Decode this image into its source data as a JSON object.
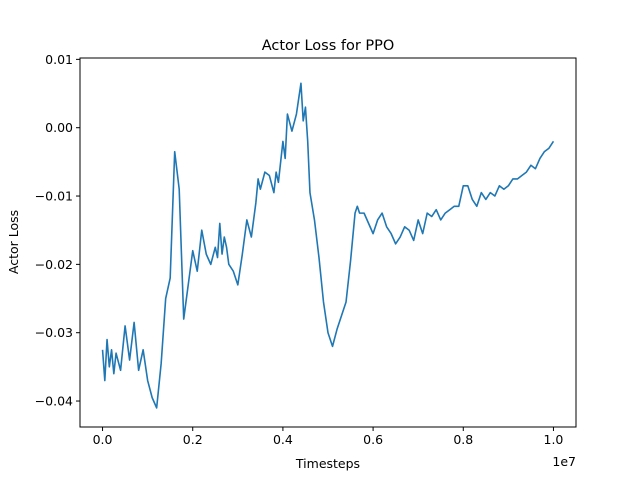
{
  "chart_data": {
    "type": "line",
    "title": "Actor Loss for PPO",
    "xlabel": "Timesteps",
    "ylabel": "Actor Loss",
    "x_offset_label": "1e7",
    "x_scale": 10000000,
    "xlim": [
      -0.05,
      1.05
    ],
    "ylim": [
      -0.0438,
      0.0102
    ],
    "xticks": [
      0.0,
      0.2,
      0.4,
      0.6,
      0.8,
      1.0
    ],
    "xtick_labels": [
      "0.0",
      "0.2",
      "0.4",
      "0.6",
      "0.8",
      "1.0"
    ],
    "yticks": [
      -0.04,
      -0.03,
      -0.02,
      -0.01,
      0.0,
      0.01
    ],
    "ytick_labels": [
      "−0.04",
      "−0.03",
      "−0.02",
      "−0.01",
      "0.00",
      "0.01"
    ],
    "grid": false,
    "series": [
      {
        "color": "#1f77b4",
        "x": [
          0.0,
          0.005,
          0.01,
          0.015,
          0.02,
          0.025,
          0.03,
          0.04,
          0.05,
          0.06,
          0.07,
          0.08,
          0.09,
          0.1,
          0.11,
          0.12,
          0.13,
          0.14,
          0.15,
          0.16,
          0.17,
          0.18,
          0.19,
          0.2,
          0.21,
          0.22,
          0.23,
          0.24,
          0.25,
          0.255,
          0.26,
          0.265,
          0.27,
          0.275,
          0.28,
          0.29,
          0.3,
          0.31,
          0.32,
          0.33,
          0.34,
          0.345,
          0.35,
          0.36,
          0.37,
          0.38,
          0.385,
          0.39,
          0.4,
          0.405,
          0.41,
          0.42,
          0.43,
          0.44,
          0.445,
          0.45,
          0.455,
          0.46,
          0.47,
          0.48,
          0.49,
          0.5,
          0.51,
          0.52,
          0.53,
          0.54,
          0.55,
          0.56,
          0.565,
          0.57,
          0.58,
          0.59,
          0.6,
          0.61,
          0.62,
          0.63,
          0.64,
          0.65,
          0.66,
          0.67,
          0.68,
          0.69,
          0.7,
          0.71,
          0.72,
          0.73,
          0.74,
          0.75,
          0.76,
          0.77,
          0.78,
          0.79,
          0.8,
          0.81,
          0.82,
          0.83,
          0.84,
          0.85,
          0.86,
          0.87,
          0.88,
          0.89,
          0.9,
          0.91,
          0.92,
          0.93,
          0.94,
          0.95,
          0.96,
          0.97,
          0.98,
          0.99,
          1.0
        ],
        "y": [
          -0.0325,
          -0.037,
          -0.031,
          -0.035,
          -0.0325,
          -0.036,
          -0.033,
          -0.0355,
          -0.029,
          -0.034,
          -0.0285,
          -0.0355,
          -0.0325,
          -0.037,
          -0.0395,
          -0.041,
          -0.0345,
          -0.025,
          -0.022,
          -0.0035,
          -0.009,
          -0.028,
          -0.023,
          -0.018,
          -0.021,
          -0.015,
          -0.0185,
          -0.02,
          -0.0175,
          -0.019,
          -0.014,
          -0.0185,
          -0.016,
          -0.0175,
          -0.02,
          -0.021,
          -0.023,
          -0.0185,
          -0.0135,
          -0.016,
          -0.011,
          -0.0075,
          -0.009,
          -0.0065,
          -0.007,
          -0.0095,
          -0.0065,
          -0.008,
          -0.002,
          -0.0045,
          0.002,
          -0.0005,
          0.002,
          0.0065,
          0.001,
          0.003,
          -0.002,
          -0.0095,
          -0.0135,
          -0.019,
          -0.0255,
          -0.03,
          -0.032,
          -0.0295,
          -0.0275,
          -0.0255,
          -0.0195,
          -0.0125,
          -0.0115,
          -0.0125,
          -0.0125,
          -0.014,
          -0.0155,
          -0.0135,
          -0.0125,
          -0.0145,
          -0.0155,
          -0.017,
          -0.016,
          -0.0145,
          -0.015,
          -0.0165,
          -0.0135,
          -0.0155,
          -0.0125,
          -0.013,
          -0.012,
          -0.0135,
          -0.0125,
          -0.012,
          -0.0115,
          -0.0115,
          -0.0085,
          -0.0085,
          -0.0105,
          -0.0115,
          -0.0095,
          -0.0105,
          -0.0095,
          -0.01,
          -0.0085,
          -0.009,
          -0.0085,
          -0.0075,
          -0.0075,
          -0.007,
          -0.0065,
          -0.0055,
          -0.006,
          -0.0045,
          -0.0035,
          -0.003,
          -0.002
        ]
      }
    ]
  }
}
